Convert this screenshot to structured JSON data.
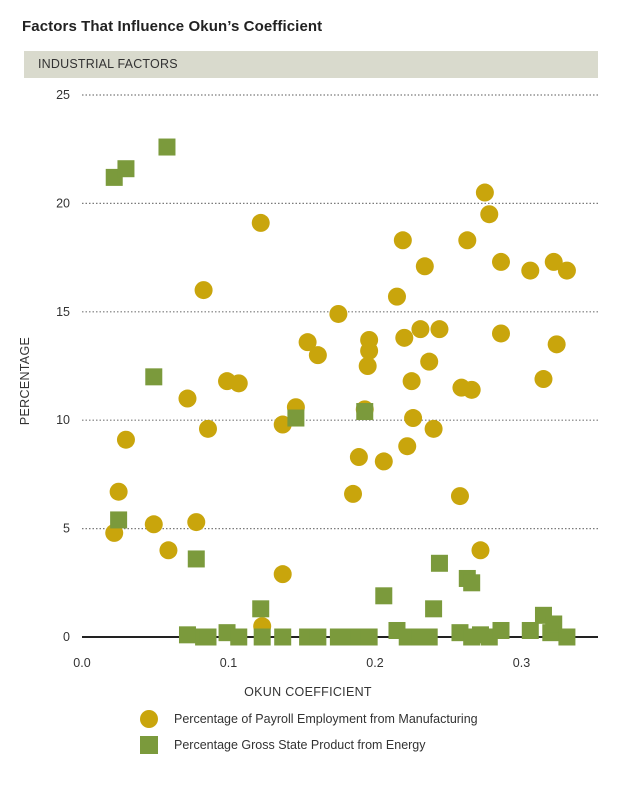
{
  "title": "Factors That Influence Okun’s Coefficient",
  "subtitle": "INDUSTRIAL FACTORS",
  "colors": {
    "manufacturing": "#c9a50c",
    "energy": "#7b9a3c",
    "panel": "#d9dacd"
  },
  "chart_data": {
    "type": "scatter",
    "xlabel": "OKUN COEFFICIENT",
    "ylabel": "PERCENTAGE",
    "xlim": [
      0.0,
      0.35
    ],
    "ylim": [
      0,
      25
    ],
    "xticks": [
      0.0,
      0.1,
      0.2,
      0.3
    ],
    "xtick_labels": [
      "0.0",
      "0.1",
      "0.2",
      "0.3"
    ],
    "yticks": [
      0,
      5,
      10,
      15,
      20,
      25
    ],
    "ytick_labels": [
      "0",
      "5",
      "10",
      "15",
      "20",
      "25"
    ],
    "grid": "horizontal dotted",
    "legend_position": "bottom",
    "series": [
      {
        "name": "Percentage of Payroll Employment from Manufacturing",
        "marker": "circle",
        "points": [
          [
            0.022,
            4.8
          ],
          [
            0.025,
            6.7
          ],
          [
            0.03,
            9.1
          ],
          [
            0.049,
            5.2
          ],
          [
            0.059,
            4.0
          ],
          [
            0.072,
            11.0
          ],
          [
            0.078,
            5.3
          ],
          [
            0.083,
            16.0
          ],
          [
            0.086,
            9.6
          ],
          [
            0.099,
            11.8
          ],
          [
            0.107,
            11.7
          ],
          [
            0.122,
            19.1
          ],
          [
            0.123,
            0.5
          ],
          [
            0.137,
            2.9
          ],
          [
            0.137,
            9.8
          ],
          [
            0.146,
            10.6
          ],
          [
            0.154,
            13.6
          ],
          [
            0.161,
            13.0
          ],
          [
            0.175,
            14.9
          ],
          [
            0.185,
            6.6
          ],
          [
            0.189,
            8.3
          ],
          [
            0.193,
            10.5
          ],
          [
            0.195,
            12.5
          ],
          [
            0.196,
            13.2
          ],
          [
            0.196,
            13.7
          ],
          [
            0.206,
            8.1
          ],
          [
            0.215,
            15.7
          ],
          [
            0.219,
            18.3
          ],
          [
            0.22,
            13.8
          ],
          [
            0.222,
            8.8
          ],
          [
            0.225,
            11.8
          ],
          [
            0.226,
            10.1
          ],
          [
            0.231,
            14.2
          ],
          [
            0.234,
            17.1
          ],
          [
            0.237,
            12.7
          ],
          [
            0.24,
            9.6
          ],
          [
            0.244,
            14.2
          ],
          [
            0.258,
            6.5
          ],
          [
            0.259,
            11.5
          ],
          [
            0.263,
            18.3
          ],
          [
            0.266,
            11.4
          ],
          [
            0.272,
            4.0
          ],
          [
            0.275,
            20.5
          ],
          [
            0.278,
            19.5
          ],
          [
            0.286,
            17.3
          ],
          [
            0.286,
            14.0
          ],
          [
            0.306,
            16.9
          ],
          [
            0.315,
            11.9
          ],
          [
            0.322,
            17.3
          ],
          [
            0.324,
            13.5
          ],
          [
            0.331,
            16.9
          ]
        ]
      },
      {
        "name": "Percentage Gross State Product from Energy",
        "marker": "square",
        "points": [
          [
            0.022,
            21.2
          ],
          [
            0.025,
            5.4
          ],
          [
            0.03,
            21.6
          ],
          [
            0.049,
            12.0
          ],
          [
            0.058,
            22.6
          ],
          [
            0.072,
            0.1
          ],
          [
            0.078,
            3.6
          ],
          [
            0.083,
            0.0
          ],
          [
            0.086,
            0.0
          ],
          [
            0.099,
            0.2
          ],
          [
            0.107,
            0.0
          ],
          [
            0.122,
            1.3
          ],
          [
            0.123,
            0.0
          ],
          [
            0.137,
            0.0
          ],
          [
            0.146,
            10.1
          ],
          [
            0.154,
            0.0
          ],
          [
            0.161,
            0.0
          ],
          [
            0.175,
            0.0
          ],
          [
            0.185,
            0.0
          ],
          [
            0.189,
            0.0
          ],
          [
            0.193,
            10.4
          ],
          [
            0.196,
            0.0
          ],
          [
            0.206,
            1.9
          ],
          [
            0.215,
            0.3
          ],
          [
            0.222,
            0.0
          ],
          [
            0.226,
            0.0
          ],
          [
            0.231,
            0.0
          ],
          [
            0.237,
            0.0
          ],
          [
            0.24,
            1.3
          ],
          [
            0.244,
            3.4
          ],
          [
            0.258,
            0.2
          ],
          [
            0.266,
            0.0
          ],
          [
            0.263,
            2.7
          ],
          [
            0.266,
            2.5
          ],
          [
            0.272,
            0.1
          ],
          [
            0.278,
            0.0
          ],
          [
            0.286,
            0.3
          ],
          [
            0.306,
            0.3
          ],
          [
            0.315,
            1.0
          ],
          [
            0.32,
            0.2
          ],
          [
            0.322,
            0.6
          ],
          [
            0.331,
            0.0
          ]
        ]
      }
    ]
  }
}
